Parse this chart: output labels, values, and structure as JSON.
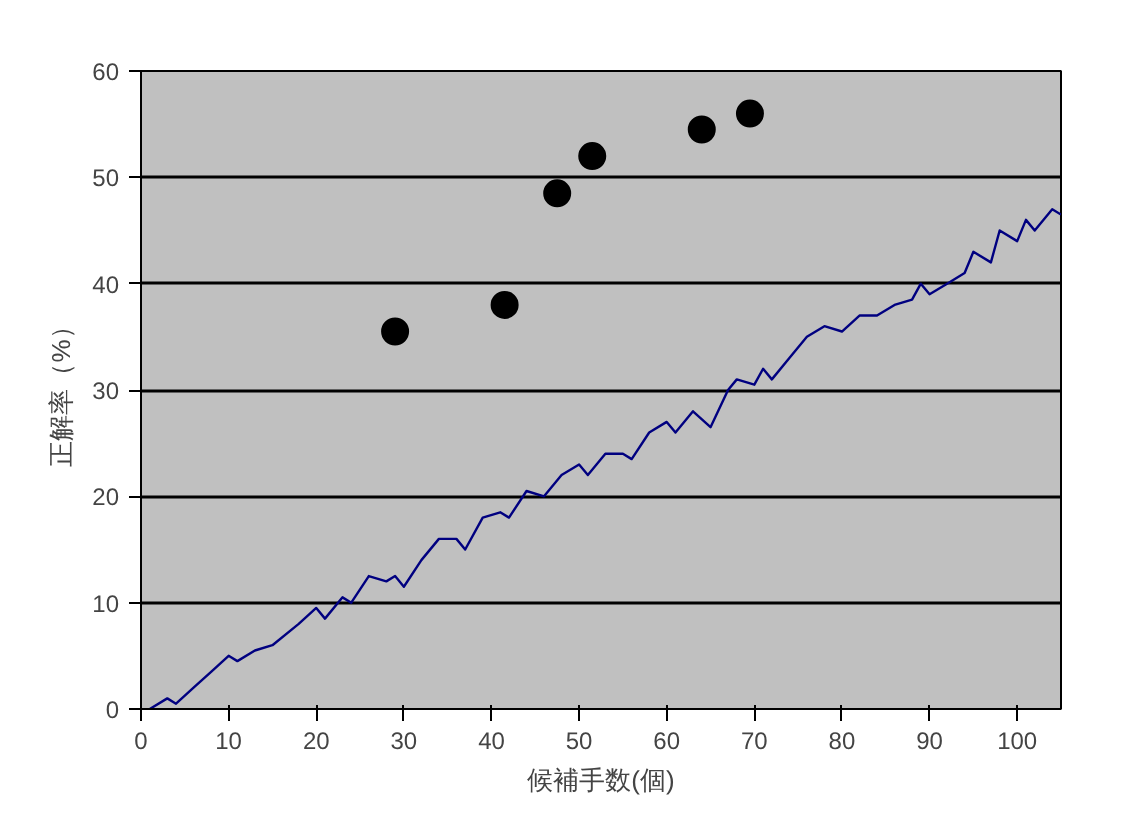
{
  "chart_data": {
    "type": "scatter",
    "xlabel": "候補手数(個)",
    "ylabel": "正解率（%）",
    "xlim": [
      0,
      105
    ],
    "ylim": [
      0,
      60
    ],
    "xticks": [
      0,
      10,
      20,
      30,
      40,
      50,
      60,
      70,
      80,
      90,
      100
    ],
    "yticks": [
      0,
      10,
      20,
      30,
      40,
      50,
      60
    ],
    "grid": "y",
    "series": [
      {
        "marker": "circle",
        "color": "#000000",
        "x": [
          29,
          41.5,
          47.5,
          51.5,
          64,
          69.5
        ],
        "values": [
          35.5,
          38,
          48.5,
          52,
          54.5,
          56
        ]
      },
      {
        "type": "line",
        "marker": "none",
        "line_style": "solid",
        "color": "#000080",
        "x": [
          1,
          3,
          4,
          6,
          8,
          10,
          11,
          13,
          15,
          18,
          20,
          21,
          23,
          24,
          26,
          28,
          29,
          30,
          32,
          34,
          36,
          37,
          39,
          41,
          42,
          44,
          46,
          48,
          50,
          51,
          53,
          55,
          56,
          58,
          60,
          61,
          63,
          65,
          67,
          68,
          70,
          71,
          72,
          74,
          76,
          78,
          80,
          82,
          84,
          86,
          88,
          89,
          90,
          92,
          94,
          95,
          97,
          98,
          100,
          101,
          102,
          104,
          105
        ],
        "values": [
          0,
          1,
          0.5,
          2,
          3.5,
          5,
          4.5,
          5.5,
          6,
          8,
          9.5,
          8.5,
          10.5,
          10,
          12.5,
          12,
          12.5,
          11.5,
          14,
          16,
          16,
          15,
          18,
          18.5,
          18,
          20.5,
          20,
          22,
          23,
          22,
          24,
          24,
          23.5,
          26,
          27,
          26,
          28,
          26.5,
          30,
          31,
          30.5,
          32,
          31,
          33,
          35,
          36,
          35.5,
          37,
          37,
          38,
          38.5,
          40,
          39,
          40,
          41,
          43,
          42,
          45,
          44,
          46,
          45,
          47,
          46.5
        ]
      }
    ]
  }
}
